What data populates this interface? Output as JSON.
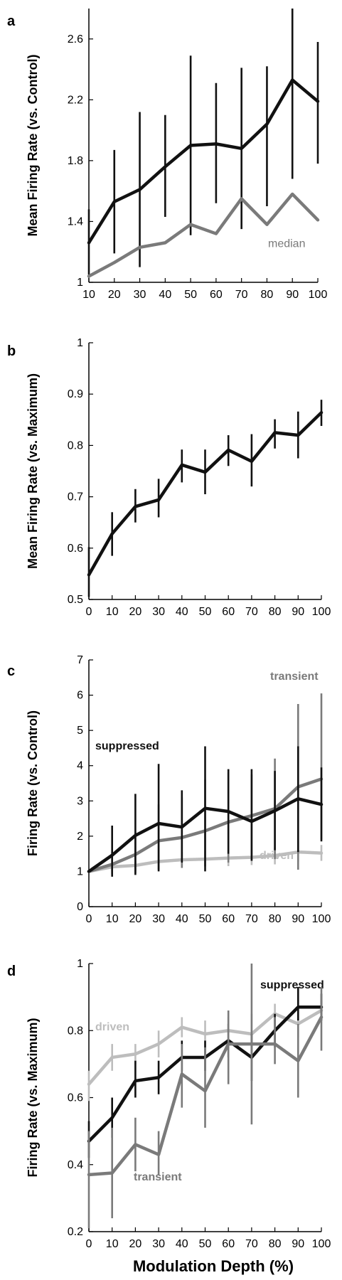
{
  "figure": {
    "xlabel": "Modulation Depth (%)"
  },
  "colors": {
    "black": "#111111",
    "dark_gray": "#7a7a7a",
    "light_gray": "#bdbdbd"
  },
  "chart_data": [
    {
      "letter": "a",
      "type": "line",
      "ylabel": "Mean Firing Rate (vs. Control)",
      "ylim": [
        1,
        2.8
      ],
      "yticks": [
        1,
        1.4,
        1.8,
        2.2,
        2.6
      ],
      "ytick_labels": [
        "1",
        "1.4",
        "1.8",
        "2.2",
        "2.6"
      ],
      "x": [
        10,
        20,
        30,
        40,
        50,
        60,
        70,
        80,
        90,
        100
      ],
      "xticks": [
        10,
        20,
        30,
        40,
        50,
        60,
        70,
        80,
        90,
        100
      ],
      "xlim": [
        10,
        100
      ],
      "series": [
        {
          "label": "",
          "color": "#111111",
          "y": [
            1.26,
            1.53,
            1.61,
            1.76,
            1.9,
            1.91,
            1.88,
            2.04,
            2.33,
            2.19
          ],
          "err_low": [
            1.05,
            1.19,
            1.1,
            1.43,
            1.31,
            1.52,
            1.35,
            1.5,
            1.68,
            1.78
          ],
          "err_high": [
            1.48,
            1.87,
            2.12,
            2.1,
            2.49,
            2.31,
            2.41,
            2.42,
            2.85,
            2.58
          ]
        },
        {
          "label": "median",
          "color": "#7a7a7a",
          "y": [
            1.04,
            1.13,
            1.23,
            1.26,
            1.38,
            1.32,
            1.55,
            1.38,
            1.58,
            1.41
          ]
        }
      ]
    },
    {
      "letter": "b",
      "type": "line",
      "ylabel": "Mean Firing Rate (vs. Maximum)",
      "ylim": [
        0.5,
        1
      ],
      "yticks": [
        0.5,
        0.6,
        0.7,
        0.8,
        0.9,
        1
      ],
      "ytick_labels": [
        "0.5",
        "0.6",
        "0.7",
        "0.8",
        "0.9",
        "1"
      ],
      "x": [
        0,
        10,
        20,
        30,
        40,
        50,
        60,
        70,
        80,
        90,
        100
      ],
      "xticks": [
        0,
        10,
        20,
        30,
        40,
        50,
        60,
        70,
        80,
        90,
        100
      ],
      "xlim": [
        0,
        100
      ],
      "series": [
        {
          "label": "",
          "color": "#111111",
          "y": [
            0.548,
            0.628,
            0.681,
            0.694,
            0.762,
            0.748,
            0.791,
            0.769,
            0.825,
            0.82,
            0.864
          ],
          "err_low": [
            0.505,
            0.585,
            0.65,
            0.66,
            0.728,
            0.705,
            0.76,
            0.72,
            0.794,
            0.775,
            0.838
          ],
          "err_high": [
            0.602,
            0.67,
            0.715,
            0.735,
            0.792,
            0.792,
            0.82,
            0.822,
            0.851,
            0.866,
            0.889
          ]
        }
      ]
    },
    {
      "letter": "c",
      "type": "line",
      "ylabel": "Firing Rate (vs. Control)",
      "ylim": [
        0,
        7
      ],
      "yticks": [
        0,
        1,
        2,
        3,
        4,
        5,
        6,
        7
      ],
      "ytick_labels": [
        "0",
        "1",
        "2",
        "3",
        "4",
        "5",
        "6",
        "7"
      ],
      "x": [
        0,
        10,
        20,
        30,
        40,
        50,
        60,
        70,
        80,
        90,
        100
      ],
      "xticks": [
        0,
        10,
        20,
        30,
        40,
        50,
        60,
        70,
        80,
        90,
        100
      ],
      "xlim": [
        0,
        100
      ],
      "series": [
        {
          "label": "driven",
          "color": "#bdbdbd",
          "y": [
            1.0,
            1.13,
            1.17,
            1.28,
            1.33,
            1.35,
            1.38,
            1.4,
            1.45,
            1.55,
            1.52
          ],
          "err_low": [
            1.0,
            1.0,
            1.02,
            1.05,
            1.1,
            1.13,
            1.15,
            1.18,
            1.2,
            1.28,
            1.3
          ],
          "err_high": [
            1.0,
            1.25,
            1.3,
            1.48,
            1.55,
            1.58,
            1.6,
            1.62,
            1.68,
            1.85,
            1.75
          ]
        },
        {
          "label": "transient",
          "color": "#7a7a7a",
          "y": [
            1.0,
            1.2,
            1.48,
            1.87,
            1.96,
            2.15,
            2.4,
            2.58,
            2.78,
            3.4,
            3.62
          ],
          "err_low": [
            1.0,
            0.92,
            0.95,
            1.05,
            1.1,
            1.15,
            1.25,
            1.3,
            1.35,
            1.05,
            1.9
          ],
          "err_high": [
            1.0,
            1.55,
            2.1,
            2.9,
            3.1,
            3.6,
            3.8,
            3.75,
            4.2,
            5.75,
            6.05
          ]
        },
        {
          "label": "suppressed",
          "color": "#111111",
          "y": [
            1.0,
            1.46,
            2.02,
            2.36,
            2.26,
            2.79,
            2.7,
            2.42,
            2.72,
            3.06,
            2.9
          ],
          "err_low": [
            1.0,
            0.85,
            0.9,
            1.0,
            1.25,
            1.0,
            1.5,
            1.3,
            1.6,
            1.55,
            1.85
          ],
          "err_high": [
            1.0,
            2.3,
            3.2,
            4.05,
            3.3,
            4.55,
            3.9,
            3.9,
            3.85,
            4.55,
            3.95
          ]
        }
      ]
    },
    {
      "letter": "d",
      "type": "line",
      "ylabel": "Firing Rate (vs. Maximum)",
      "ylim": [
        0.2,
        1
      ],
      "yticks": [
        0.2,
        0.4,
        0.6,
        0.8,
        1
      ],
      "ytick_labels": [
        "0.2",
        "0.4",
        "0.6",
        "0.8",
        "1"
      ],
      "x": [
        0,
        10,
        20,
        30,
        40,
        50,
        60,
        70,
        80,
        90,
        100
      ],
      "xticks": [
        0,
        10,
        20,
        30,
        40,
        50,
        60,
        70,
        80,
        90,
        100
      ],
      "xlim": [
        0,
        100
      ],
      "series": [
        {
          "label": "driven",
          "color": "#bdbdbd",
          "y": [
            0.64,
            0.72,
            0.73,
            0.76,
            0.81,
            0.79,
            0.8,
            0.79,
            0.85,
            0.82,
            0.86
          ],
          "err_low": [
            0.59,
            0.68,
            0.7,
            0.72,
            0.78,
            0.75,
            0.76,
            0.72,
            0.82,
            0.78,
            0.83
          ],
          "err_high": [
            0.68,
            0.76,
            0.76,
            0.8,
            0.84,
            0.83,
            0.84,
            0.85,
            0.88,
            0.86,
            0.89
          ]
        },
        {
          "label": "suppressed",
          "color": "#111111",
          "y": [
            0.47,
            0.54,
            0.65,
            0.66,
            0.72,
            0.72,
            0.77,
            0.72,
            0.8,
            0.87,
            0.87
          ],
          "err_low": [
            0.42,
            0.48,
            0.6,
            0.61,
            0.68,
            0.68,
            0.72,
            0.65,
            0.75,
            0.83,
            0.83
          ],
          "err_high": [
            0.53,
            0.6,
            0.71,
            0.71,
            0.77,
            0.77,
            0.82,
            0.79,
            0.85,
            0.93,
            0.91
          ]
        },
        {
          "label": "transient",
          "color": "#7a7a7a",
          "y": [
            0.37,
            0.375,
            0.46,
            0.43,
            0.67,
            0.62,
            0.76,
            0.76,
            0.76,
            0.71,
            0.84
          ],
          "err_low": [
            0.21,
            0.24,
            0.38,
            0.37,
            0.57,
            0.51,
            0.64,
            0.52,
            0.7,
            0.6,
            0.74
          ],
          "err_high": [
            0.5,
            0.51,
            0.54,
            0.5,
            0.76,
            0.75,
            0.86,
            1.0,
            0.84,
            0.82,
            0.93
          ]
        }
      ]
    }
  ]
}
